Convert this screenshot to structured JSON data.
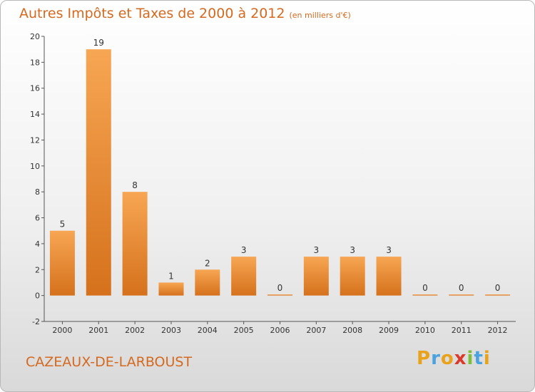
{
  "title": "Autres Impôts et Taxes de 2000 à 2012",
  "subtitle": "(en milliers d'€)",
  "commune": "CAZEAUX-DE-LARBOUST",
  "logo": {
    "letters": [
      "P",
      "r",
      "o",
      "x",
      "i",
      "t",
      "i"
    ],
    "colors": [
      "#e8a21c",
      "#4aa3df",
      "#e8a21c",
      "#d93a2b",
      "#7bbf3a",
      "#4aa3df",
      "#e8a21c"
    ]
  },
  "colors": {
    "bar_light": "#f7a653",
    "bar_dark": "#d5711c",
    "text": "#d4691f"
  },
  "chart_data": {
    "type": "bar",
    "title": "Autres Impôts et Taxes de 2000 à 2012",
    "subtitle": "(en milliers d'€)",
    "categories": [
      "2000",
      "2001",
      "2002",
      "2003",
      "2004",
      "2005",
      "2006",
      "2007",
      "2008",
      "2009",
      "2010",
      "2011",
      "2012"
    ],
    "values": [
      5,
      19,
      8,
      1,
      2,
      3,
      0,
      3,
      3,
      3,
      0,
      0,
      0
    ],
    "ylim": [
      -2,
      20
    ],
    "yticks": [
      -2,
      0,
      2,
      4,
      6,
      8,
      10,
      12,
      14,
      16,
      18,
      20
    ],
    "grid": false,
    "legend": "none"
  }
}
